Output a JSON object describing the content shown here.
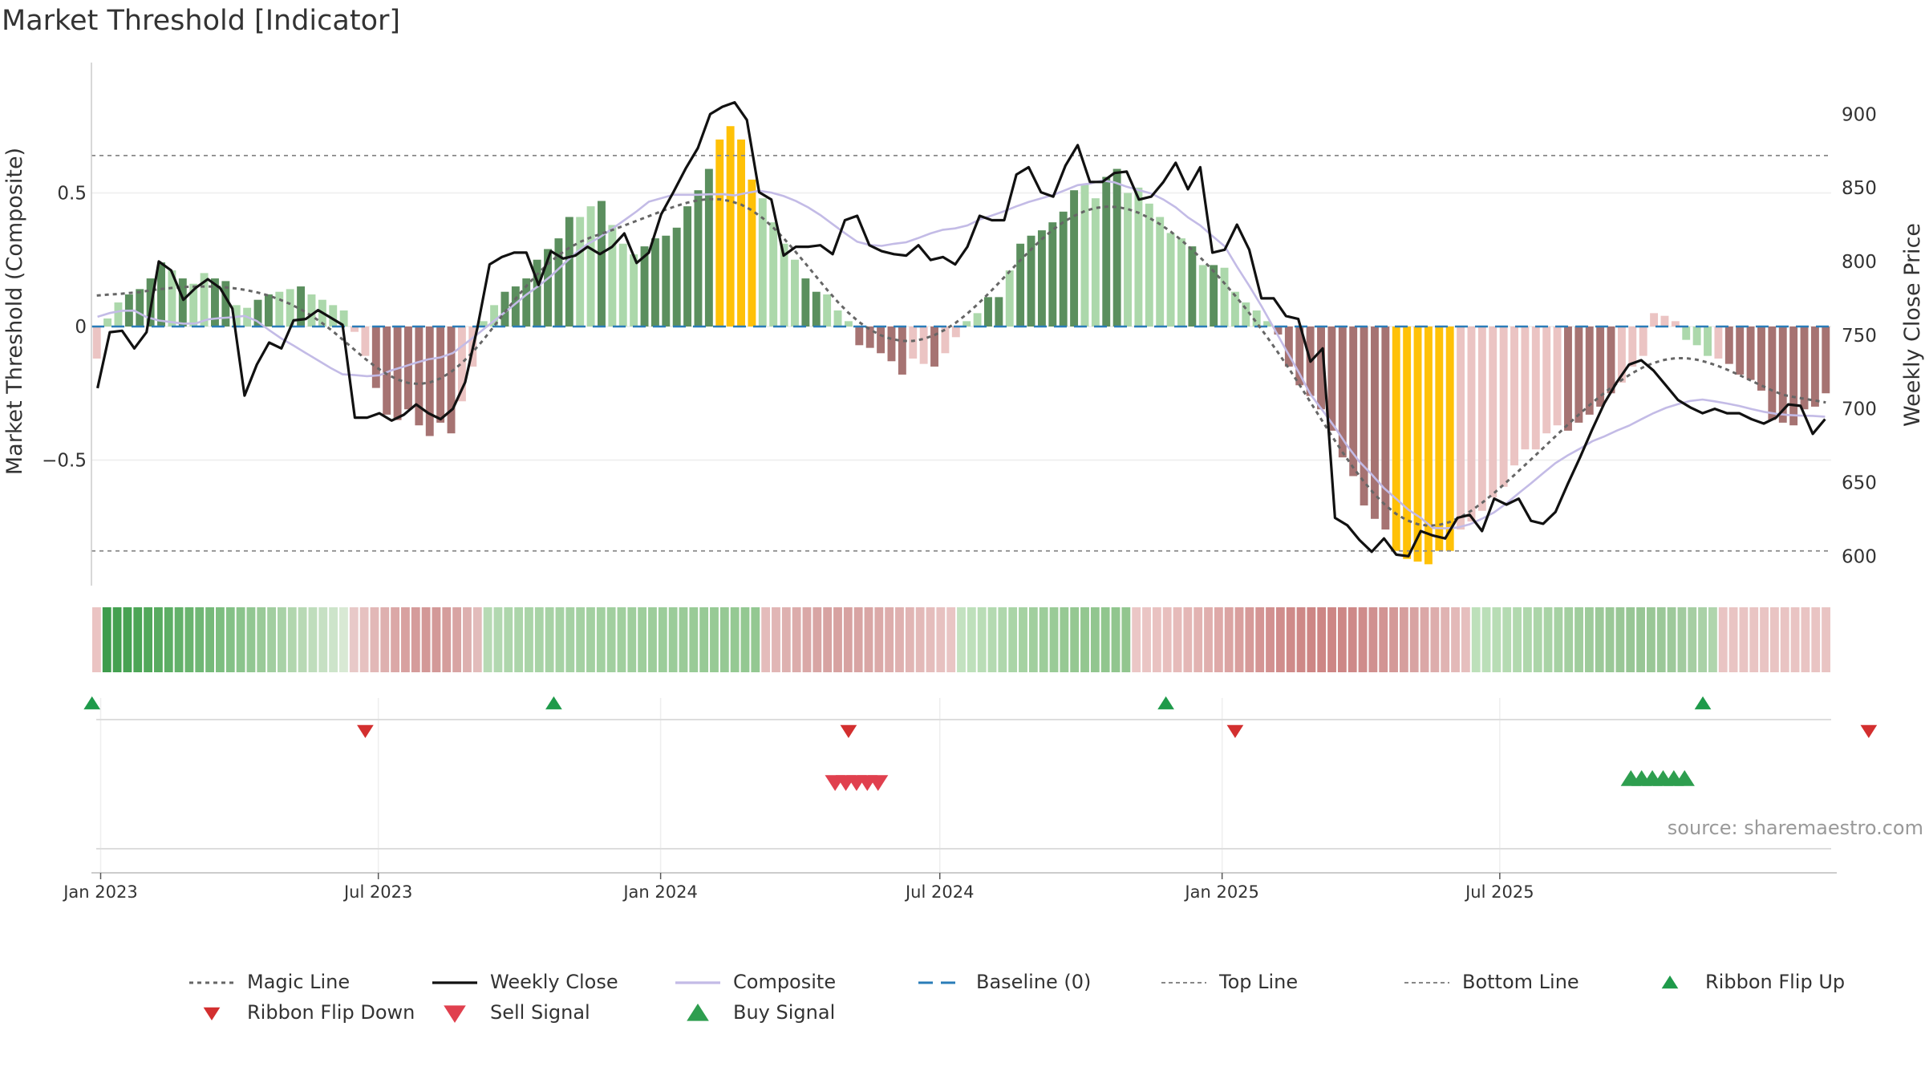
{
  "title": "Market Threshold [Indicator]",
  "source": "source: sharemaestro.com",
  "colors": {
    "dark_green": "#5b8f5e",
    "light_green": "#acd8ab",
    "dark_red": "#a67372",
    "light_red": "#ebc4c3",
    "gold": "#ffc107",
    "close": "#111111",
    "magic": "#666666",
    "composite": "#c3bbe6",
    "baseline": "#2a7cb8",
    "threshold": "#888888",
    "flip_up": "#1e9a4a",
    "flip_down": "#d32f2f",
    "buy": "#2e9e4f",
    "sell": "#e0404e"
  },
  "chart_data": {
    "type": "bar",
    "title": "Market Threshold [Indicator]",
    "ylabel_left": "Market Threshold (Composite)",
    "ylabel_right": "Weekly Close Price",
    "ylim_left": [
      -0.97,
      0.97
    ],
    "ylim_right": [
      580,
      935
    ],
    "left_ticks": [
      "0.5",
      "0",
      "−0.5"
    ],
    "left_tick_values": [
      0.5,
      0,
      -0.5
    ],
    "right_ticks": [
      900,
      850,
      800,
      750,
      700,
      650,
      600
    ],
    "top_line": 0.64,
    "bottom_line": -0.84,
    "baseline": 0,
    "x_start": "2022-12-26",
    "x_ticks": [
      {
        "date": "2023-01-01",
        "label": "Jan 2023"
      },
      {
        "date": "2023-07-01",
        "label": "Jul 2023"
      },
      {
        "date": "2024-01-01",
        "label": "Jan 2024"
      },
      {
        "date": "2024-07-01",
        "label": "Jul 2024"
      },
      {
        "date": "2025-01-01",
        "label": "Jan 2025"
      },
      {
        "date": "2025-07-01",
        "label": "Jul 2025"
      }
    ],
    "bars": {
      "values": [
        -0.12,
        0.03,
        0.09,
        0.12,
        0.14,
        0.18,
        0.24,
        0.21,
        0.18,
        0.16,
        0.2,
        0.18,
        0.17,
        0.08,
        0.07,
        0.1,
        0.12,
        0.13,
        0.14,
        0.15,
        0.12,
        0.1,
        0.08,
        0.06,
        -0.02,
        -0.11,
        -0.23,
        -0.33,
        -0.35,
        -0.31,
        -0.37,
        -0.41,
        -0.36,
        -0.4,
        -0.28,
        -0.15,
        0.02,
        0.08,
        0.13,
        0.15,
        0.18,
        0.25,
        0.29,
        0.33,
        0.41,
        0.41,
        0.45,
        0.47,
        0.38,
        0.31,
        0.27,
        0.3,
        0.33,
        0.34,
        0.37,
        0.45,
        0.51,
        0.59,
        0.7,
        0.75,
        0.7,
        0.55,
        0.48,
        0.39,
        0.31,
        0.25,
        0.18,
        0.13,
        0.12,
        0.06,
        0.02,
        -0.07,
        -0.08,
        -0.1,
        -0.13,
        -0.18,
        -0.12,
        -0.14,
        -0.15,
        -0.1,
        -0.04,
        0.02,
        0.05,
        0.11,
        0.11,
        0.21,
        0.31,
        0.34,
        0.36,
        0.39,
        0.43,
        0.51,
        0.53,
        0.48,
        0.56,
        0.59,
        0.5,
        0.52,
        0.46,
        0.41,
        0.35,
        0.33,
        0.3,
        0.23,
        0.23,
        0.22,
        0.13,
        0.09,
        0.06,
        0.02,
        -0.03,
        -0.15,
        -0.22,
        -0.26,
        -0.31,
        -0.39,
        -0.49,
        -0.56,
        -0.67,
        -0.72,
        -0.76,
        -0.84,
        -0.87,
        -0.88,
        -0.89,
        -0.84,
        -0.84,
        -0.76,
        -0.73,
        -0.69,
        -0.64,
        -0.6,
        -0.52,
        -0.46,
        -0.46,
        -0.4,
        -0.37,
        -0.39,
        -0.36,
        -0.33,
        -0.3,
        -0.25,
        -0.21,
        -0.15,
        -0.11,
        0.05,
        0.04,
        0.02,
        -0.05,
        -0.07,
        -0.11,
        -0.12,
        -0.14,
        -0.18,
        -0.2,
        -0.24,
        -0.35,
        -0.36,
        -0.37,
        -0.31,
        -0.3,
        -0.25
      ],
      "colors": [
        "lr",
        "lg",
        "lg",
        "dg",
        "dg",
        "dg",
        "dg",
        "lg",
        "dg",
        "lg",
        "lg",
        "dg",
        "dg",
        "lg",
        "lg",
        "dg",
        "dg",
        "lg",
        "lg",
        "dg",
        "lg",
        "lg",
        "lg",
        "lg",
        "lr",
        "lr",
        "dr",
        "dr",
        "dr",
        "dr",
        "dr",
        "dr",
        "dr",
        "dr",
        "lr",
        "lr",
        "lg",
        "lg",
        "dg",
        "dg",
        "dg",
        "dg",
        "dg",
        "dg",
        "dg",
        "lg",
        "lg",
        "dg",
        "lg",
        "lg",
        "lg",
        "dg",
        "dg",
        "dg",
        "dg",
        "dg",
        "dg",
        "dg",
        "go",
        "go",
        "go",
        "go",
        "lg",
        "lg",
        "lg",
        "lg",
        "dg",
        "dg",
        "lg",
        "lg",
        "lg",
        "dr",
        "dr",
        "dr",
        "dr",
        "dr",
        "lr",
        "lr",
        "dr",
        "lr",
        "lr",
        "lg",
        "lg",
        "dg",
        "dg",
        "lg",
        "dg",
        "dg",
        "dg",
        "dg",
        "dg",
        "dg",
        "lg",
        "lg",
        "dg",
        "dg",
        "lg",
        "lg",
        "lg",
        "lg",
        "lg",
        "lg",
        "dg",
        "lg",
        "dg",
        "lg",
        "lg",
        "lg",
        "lg",
        "lg",
        "dr",
        "dr",
        "dr",
        "dr",
        "dr",
        "dr",
        "dr",
        "dr",
        "dr",
        "dr",
        "dr",
        "go",
        "go",
        "go",
        "go",
        "go",
        "go",
        "lr",
        "lr",
        "lr",
        "lr",
        "lr",
        "lr",
        "lr",
        "lr",
        "lr",
        "lr",
        "dr",
        "dr",
        "dr",
        "dr",
        "dr",
        "lr",
        "lr",
        "lr",
        "lr",
        "lr",
        "lr",
        "lg",
        "lg",
        "lg",
        "lr",
        "dr",
        "dr",
        "dr",
        "dr",
        "dr",
        "dr",
        "dr",
        "dr",
        "dr",
        "dr",
        "lr",
        "dr",
        "lr",
        "lr"
      ]
    },
    "close": [
      714,
      752,
      753,
      741,
      752,
      800,
      794,
      774,
      782,
      788,
      782,
      768,
      709,
      730,
      745,
      741,
      760,
      761,
      767,
      762,
      757,
      694,
      694,
      697,
      692,
      696,
      703,
      697,
      693,
      700,
      718,
      755,
      798,
      803,
      806,
      806,
      784,
      807,
      802,
      804,
      810,
      805,
      810,
      819,
      799,
      806,
      832,
      847,
      863,
      877,
      900,
      905,
      908,
      896,
      847,
      842,
      804,
      810,
      810,
      811,
      805,
      828,
      831,
      811,
      807,
      805,
      804,
      811,
      801,
      803,
      798,
      810,
      831,
      828,
      828,
      859,
      864,
      847,
      844,
      865,
      879,
      854,
      854,
      860,
      861,
      842,
      844,
      854,
      867,
      849,
      864,
      806,
      808,
      825,
      808,
      775,
      775,
      763,
      761,
      732,
      741,
      626,
      621,
      611,
      603,
      612,
      601,
      600,
      617,
      614,
      612,
      626,
      628,
      617,
      639,
      635,
      639,
      624,
      622,
      630,
      649,
      667,
      686,
      704,
      718,
      730,
      733,
      726,
      716,
      706,
      701,
      697,
      700,
      697,
      697,
      693,
      690,
      694,
      703,
      702,
      683,
      693
    ],
    "close_sampled": true,
    "series": [
      {
        "name": "Magic Line"
      },
      {
        "name": "Weekly Close"
      },
      {
        "name": "Composite"
      },
      {
        "name": "Baseline (0)"
      },
      {
        "name": "Top Line"
      },
      {
        "name": "Bottom Line"
      }
    ],
    "ribbon": {
      "colors": [
        "#ebc4c3",
        "#3e9c4c",
        "#44a050",
        "#47a253",
        "#4ca556",
        "#52a85b",
        "#58ab60",
        "#5dae65",
        "#63b16a",
        "#6ab46f",
        "#70b775",
        "#76ba7a",
        "#7dbe80",
        "#84c186",
        "#8bc48c",
        "#92c792",
        "#9aca98",
        "#a2cea0",
        "#a9d2a7",
        "#b1d6ae",
        "#b8d9b5",
        "#bfddbc",
        "#c6e0c3",
        "#cde4ca",
        "#d8e9d4",
        "#e8c9c8",
        "#e6c1c0",
        "#e2b8b7",
        "#deb0af",
        "#dba8a7",
        "#d8a1a0",
        "#d59c9b",
        "#d39897",
        "#d39998",
        "#d59d9c",
        "#d8a4a3",
        "#ddb0af",
        "#e2bcbb",
        "#b7dab4",
        "#b2d8b0",
        "#aed6ac",
        "#acd5aa",
        "#aad4a8",
        "#a8d3a6",
        "#a7d2a5",
        "#a6d2a4",
        "#a5d1a3",
        "#a4d1a2",
        "#a3d0a1",
        "#a2d0a0",
        "#a1cf9f",
        "#a0cf9e",
        "#9fce9d",
        "#9ece9c",
        "#9dcd9b",
        "#9ccd9a",
        "#9bcc99",
        "#9acb98",
        "#99cb97",
        "#98ca96",
        "#97ca95",
        "#96c994",
        "#95c993",
        "#94c892",
        "#94c892",
        "#e4bcbb",
        "#e1b6b5",
        "#deb1b0",
        "#dcacab",
        "#daa8a7",
        "#d8a5a4",
        "#d7a3a2",
        "#d7a2a1",
        "#d7a2a1",
        "#d8a4a3",
        "#d9a6a5",
        "#dba9a8",
        "#ddadac",
        "#dfb1b0",
        "#e1b5b4",
        "#e3b9b8",
        "#e5bdbc",
        "#e7c1c0",
        "#e9c5c4",
        "#c3e2c0",
        "#bee0bb",
        "#b9ddb6",
        "#b4dab1",
        "#afd7ac",
        "#aad5a7",
        "#a5d2a2",
        "#a1cf9e",
        "#9dcd9a",
        "#9acb97",
        "#97c994",
        "#95c892",
        "#93c790",
        "#92c68f",
        "#91c68e",
        "#91c68e",
        "#92c68f",
        "#ebc7c6",
        "#eac5c4",
        "#e9c2c1",
        "#e8bfbe",
        "#e6bbba",
        "#e4b7b6",
        "#e2b3b2",
        "#e0afae",
        "#dea9a8",
        "#dba4a3",
        "#d99f9e",
        "#d69a99",
        "#d49594",
        "#d29190",
        "#d08d8c",
        "#cf8a89",
        "#ce8887",
        "#cd8685",
        "#cd8685",
        "#cd8685",
        "#cd8786",
        "#ce8988",
        "#cf8c8b",
        "#d0908f",
        "#d29493",
        "#d49998",
        "#d69e9d",
        "#d8a3a2",
        "#dba8a7",
        "#ddadac",
        "#e0b3b2",
        "#e3b9b8",
        "#e6bfbe",
        "#bde0ba",
        "#bbdfb8",
        "#b8ddb5",
        "#b5dbb2",
        "#b2d9af",
        "#afd7ac",
        "#acd5a9",
        "#a9d3a6",
        "#a6d1a3",
        "#a3cfa0",
        "#a0cd9d",
        "#9ecb9b",
        "#9cc999",
        "#9ac897",
        "#99c796",
        "#98c695",
        "#98c695",
        "#99c796",
        "#9bc898",
        "#9ec99b",
        "#a2cb9f",
        "#a6cea3",
        "#aad1a7",
        "#b0d5ad",
        "#e9c4c3",
        "#e9c4c3",
        "#e9c4c3",
        "#e9c4c3",
        "#e9c4c3",
        "#e9c4c3",
        "#e9c4c3",
        "#e9c4c3",
        "#e9c4c3",
        "#e9c4c3",
        "#e9c4c3"
      ]
    },
    "ribbon_flip_up_weeks": [
      0,
      43,
      100,
      150
    ],
    "ribbon_flip_down_weeks": [
      25,
      70,
      106,
      165
    ],
    "sell_signal_weeks": [
      68,
      69,
      70,
      71,
      72
    ],
    "buy_signal_weeks": [
      143,
      144,
      145,
      146,
      147,
      148
    ],
    "legend": [
      {
        "label": "Magic Line",
        "style": "dotted",
        "color": "#666666"
      },
      {
        "label": "Weekly Close",
        "style": "solid",
        "color": "#111111"
      },
      {
        "label": "Composite",
        "style": "solid",
        "color": "#c3bbe6"
      },
      {
        "label": "Baseline (0)",
        "style": "dashed",
        "color": "#2a7cb8"
      },
      {
        "label": "Top Line",
        "style": "dotted-light",
        "color": "#888888"
      },
      {
        "label": "Bottom Line",
        "style": "dotted-light",
        "color": "#888888"
      },
      {
        "label": "Ribbon Flip Up",
        "style": "tri-up",
        "color": "#1e9a4a"
      },
      {
        "label": "Ribbon Flip Down",
        "style": "tri-down",
        "color": "#d32f2f"
      },
      {
        "label": "Sell Signal",
        "style": "tri-down-big",
        "color": "#e0404e"
      },
      {
        "label": "Buy Signal",
        "style": "tri-up-big",
        "color": "#2e9e4f"
      }
    ]
  }
}
